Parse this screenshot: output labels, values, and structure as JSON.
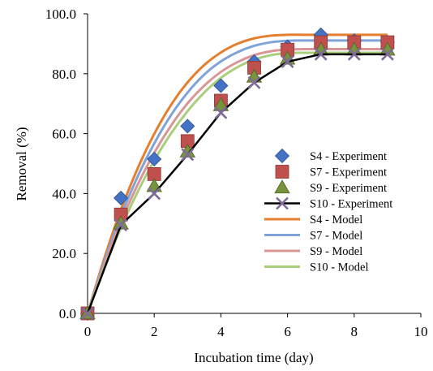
{
  "chart_data": {
    "type": "scatter",
    "title": "",
    "xlabel": "Incubation time (day)",
    "ylabel": "Removal  (%)",
    "xlim": [
      0,
      10
    ],
    "ylim": [
      0,
      100
    ],
    "x_ticks": [
      "0",
      "2",
      "4",
      "6",
      "8",
      "10"
    ],
    "y_ticks": [
      "0.0",
      "20.0",
      "40.0",
      "60.0",
      "80.0",
      "100.0"
    ],
    "grid": false,
    "legend_position": "right",
    "experiment_series": [
      {
        "name": "S4 - Experiment",
        "marker": "diamond",
        "color": "#4472C4",
        "line": false,
        "x": [
          0,
          1,
          2,
          3,
          4,
          5,
          6,
          7,
          8,
          9
        ],
        "y": [
          0,
          38.5,
          51.5,
          62.5,
          76,
          84,
          89,
          93,
          91,
          90.5
        ]
      },
      {
        "name": "S7 - Experiment",
        "marker": "square",
        "color": "#C0504D",
        "line": false,
        "x": [
          0,
          1,
          2,
          3,
          4,
          5,
          6,
          7,
          8,
          9
        ],
        "y": [
          0,
          33,
          46.5,
          57.5,
          71,
          82,
          88,
          90.5,
          90.5,
          90.5
        ]
      },
      {
        "name": "S9 - Experiment",
        "marker": "triangle",
        "color": "#77933C",
        "line": false,
        "x": [
          0,
          1,
          2,
          3,
          4,
          5,
          6,
          7,
          8,
          9
        ],
        "y": [
          0,
          30,
          42.5,
          54,
          69.5,
          79,
          85,
          88,
          88,
          88
        ]
      },
      {
        "name": "S10 - Experiment",
        "marker": "x",
        "color": "#7F6A9A",
        "line": true,
        "line_color": "#000000",
        "x": [
          0,
          1,
          2,
          3,
          4,
          5,
          6,
          7,
          8,
          9
        ],
        "y": [
          0,
          29.5,
          40,
          53,
          67,
          77,
          84,
          86.5,
          86.5,
          86.5
        ]
      }
    ],
    "model_series": [
      {
        "name": "S4 - Model",
        "color": "#E57E2E",
        "x": [
          0,
          0.5,
          1,
          1.5,
          2,
          2.5,
          3,
          3.5,
          4,
          4.5,
          5,
          5.5,
          6,
          6.5,
          7,
          7.5,
          8,
          8.5,
          9
        ],
        "y": [
          0,
          18.3,
          34.5,
          48.3,
          59.9,
          69.5,
          77.1,
          82.9,
          87.1,
          90.0,
          91.8,
          92.7,
          93.0,
          93.0,
          93.0,
          93.0,
          93.0,
          93.0,
          93.0
        ]
      },
      {
        "name": "S7 - Model",
        "color": "#7FA3D8",
        "x": [
          0,
          0.5,
          1,
          1.5,
          2,
          2.5,
          3,
          3.5,
          4,
          4.5,
          5,
          5.5,
          6,
          6.5,
          7,
          7.5,
          8,
          8.5,
          9
        ],
        "y": [
          0,
          17.2,
          32.4,
          45.6,
          56.7,
          66.1,
          73.7,
          79.7,
          84.1,
          87.2,
          89.3,
          90.5,
          91.0,
          91.1,
          91.1,
          91.1,
          91.1,
          91.1,
          91.1
        ]
      },
      {
        "name": "S9 - Model",
        "color": "#D99694",
        "x": [
          0,
          0.5,
          1,
          1.5,
          2,
          2.5,
          3,
          3.5,
          4,
          4.5,
          5,
          5.5,
          6,
          6.5,
          7,
          7.5,
          8,
          8.5,
          9
        ],
        "y": [
          0,
          16.2,
          30.5,
          42.9,
          53.6,
          62.6,
          70.1,
          76.0,
          80.6,
          83.9,
          86.2,
          87.5,
          88.1,
          88.2,
          88.2,
          88.2,
          88.2,
          88.2,
          88.2
        ]
      },
      {
        "name": "S10 - Model",
        "color": "#A9CF7D",
        "x": [
          0,
          0.5,
          1,
          1.5,
          2,
          2.5,
          3,
          3.5,
          4,
          4.5,
          5,
          5.5,
          6,
          6.5,
          7,
          7.5,
          8,
          8.5,
          9
        ],
        "y": [
          0,
          15.0,
          28.5,
          40.5,
          51.0,
          60.0,
          67.5,
          73.7,
          78.6,
          82.2,
          84.7,
          86.2,
          86.9,
          87.0,
          87.0,
          87.0,
          87.0,
          87.0,
          87.0
        ]
      }
    ],
    "legend": [
      "S4 - Experiment",
      "S7 - Experiment",
      "S9 - Experiment",
      "S10 - Experiment",
      "S4 - Model",
      "S7 - Model",
      "S9 - Model",
      "S10 - Model"
    ]
  }
}
